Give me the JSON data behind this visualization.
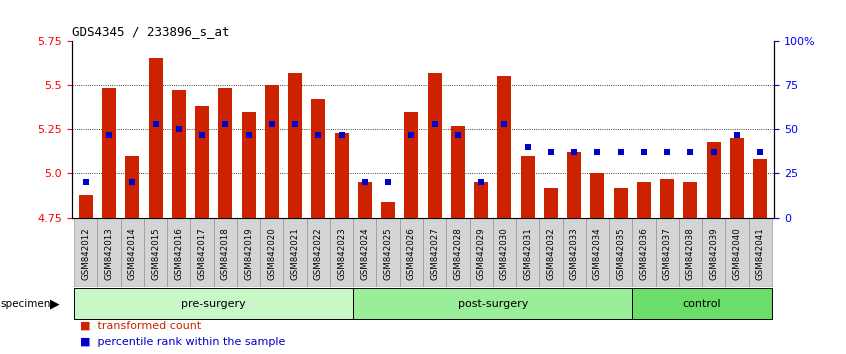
{
  "title": "GDS4345 / 233896_s_at",
  "categories": [
    "GSM842012",
    "GSM842013",
    "GSM842014",
    "GSM842015",
    "GSM842016",
    "GSM842017",
    "GSM842018",
    "GSM842019",
    "GSM842020",
    "GSM842021",
    "GSM842022",
    "GSM842023",
    "GSM842024",
    "GSM842025",
    "GSM842026",
    "GSM842027",
    "GSM842028",
    "GSM842029",
    "GSM842030",
    "GSM842031",
    "GSM842032",
    "GSM842033",
    "GSM842034",
    "GSM842035",
    "GSM842036",
    "GSM842037",
    "GSM842038",
    "GSM842039",
    "GSM842040",
    "GSM842041"
  ],
  "red_values": [
    4.88,
    5.48,
    5.1,
    5.65,
    5.47,
    5.38,
    5.48,
    5.35,
    5.5,
    5.57,
    5.42,
    5.23,
    4.95,
    4.84,
    5.35,
    5.57,
    5.27,
    4.95,
    5.55,
    5.1,
    4.92,
    5.12,
    5.0,
    4.92,
    4.95,
    4.97,
    4.95,
    5.18,
    5.2,
    5.08
  ],
  "blue_values_pct": [
    20,
    47,
    20,
    53,
    50,
    47,
    53,
    47,
    53,
    53,
    47,
    47,
    20,
    20,
    47,
    53,
    47,
    20,
    53,
    40,
    37,
    37,
    37,
    37,
    37,
    37,
    37,
    37,
    47,
    37
  ],
  "ymin": 4.75,
  "ymax": 5.75,
  "yticks": [
    4.75,
    5.0,
    5.25,
    5.5,
    5.75
  ],
  "right_yticks": [
    0,
    25,
    50,
    75,
    100
  ],
  "right_ytick_labels": [
    "0",
    "25",
    "50",
    "75",
    "100%"
  ],
  "groups": [
    {
      "label": "pre-surgery",
      "start": 0,
      "end": 12
    },
    {
      "label": "post-surgery",
      "start": 12,
      "end": 24
    },
    {
      "label": "control",
      "start": 24,
      "end": 30
    }
  ],
  "group_colors": [
    "#c8f7c8",
    "#9aee9a",
    "#6add6a"
  ],
  "bar_color": "#cc2200",
  "dot_color": "#0000cc",
  "specimen_label": "specimen",
  "legend_red": "transformed count",
  "legend_blue": "percentile rank within the sample"
}
